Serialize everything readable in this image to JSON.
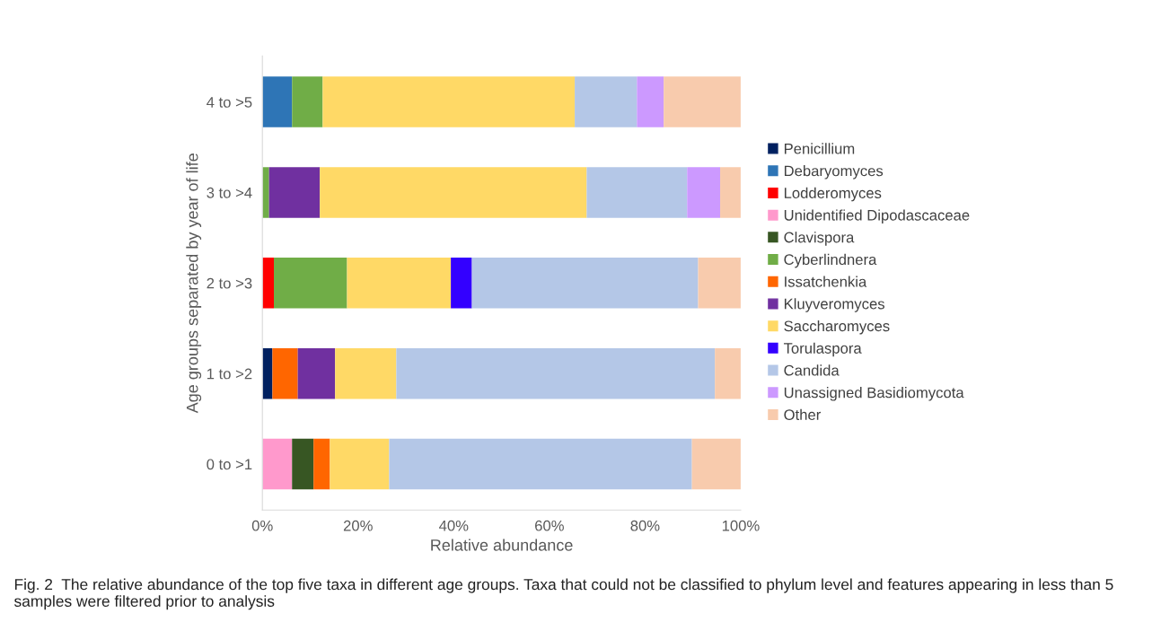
{
  "chart_data": {
    "type": "bar",
    "orientation": "horizontal",
    "stacked": true,
    "xlabel": "Relative abundance",
    "ylabel": "Age groups separated by year of life",
    "categories": [
      "4 to >5",
      "3 to >4",
      "2 to >3",
      "1 to >2",
      "0 to >1"
    ],
    "series": [
      {
        "name": "Penicillium",
        "color": "#002060",
        "values": [
          0,
          0,
          0,
          2.1,
          0
        ]
      },
      {
        "name": "Debaryomyces",
        "color": "#2e75b6",
        "values": [
          6.2,
          0,
          0,
          0,
          0
        ]
      },
      {
        "name": "Lodderomyces",
        "color": "#ff0000",
        "values": [
          0,
          0,
          2.4,
          0,
          0
        ]
      },
      {
        "name": "Unidentified Dipodascaceae",
        "color": "#ff99cc",
        "values": [
          0,
          0,
          0,
          0,
          6.2
        ]
      },
      {
        "name": "Clavispora",
        "color": "#375623",
        "values": [
          0,
          0,
          0,
          0,
          4.5
        ]
      },
      {
        "name": "Cyberlindnera",
        "color": "#70ad47",
        "values": [
          6.4,
          1.4,
          15.3,
          0,
          0
        ]
      },
      {
        "name": "Issatchenkia",
        "color": "#ff6600",
        "values": [
          0,
          0,
          0,
          5.3,
          3.4
        ]
      },
      {
        "name": "Kluyveromyces",
        "color": "#7030a0",
        "values": [
          0,
          10.6,
          0,
          7.8,
          0
        ]
      },
      {
        "name": "Saccharomyces",
        "color": "#ffd966",
        "values": [
          52.7,
          55.8,
          21.7,
          12.8,
          12.4
        ]
      },
      {
        "name": "Torulaspora",
        "color": "#3300ff",
        "values": [
          0,
          0,
          4.4,
          0,
          0
        ]
      },
      {
        "name": "Candida",
        "color": "#b4c7e7",
        "values": [
          13.0,
          21.0,
          47.3,
          66.6,
          63.3
        ]
      },
      {
        "name": "Unassigned Basidiomycota",
        "color": "#cc99ff",
        "values": [
          5.6,
          6.9,
          0,
          0,
          0
        ]
      },
      {
        "name": "Other",
        "color": "#f8cbad",
        "values": [
          16.1,
          4.3,
          8.9,
          5.4,
          10.2
        ]
      }
    ],
    "xlim": [
      0,
      100
    ],
    "xticks": [
      {
        "value": 0,
        "label": "0%"
      },
      {
        "value": 20,
        "label": "20%"
      },
      {
        "value": 40,
        "label": "40%"
      },
      {
        "value": 60,
        "label": "60%"
      },
      {
        "value": 80,
        "label": "80%"
      },
      {
        "value": 100,
        "label": "100%"
      }
    ],
    "grid": false,
    "legend": "right",
    "annotations": [
      "Fig. 2  The relative abundance of the top five taxa in different age groups. Taxa that could not be classified to phylum level and features appearing in less than 5 samples were filtered prior to analysis"
    ]
  }
}
